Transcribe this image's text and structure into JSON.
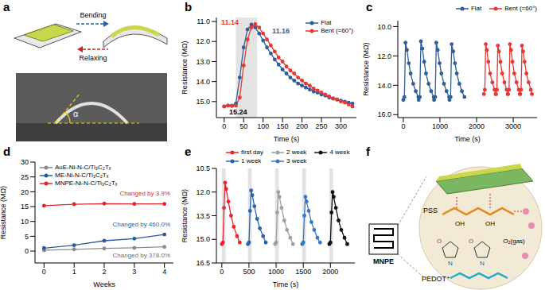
{
  "panels": {
    "a": {
      "label": "a",
      "texts": {
        "bend": "Bending",
        "relax": "Relaxing",
        "angle": "α"
      }
    },
    "f": {
      "label": "f",
      "texts": {
        "device": "MNPE",
        "pss": "PSS",
        "pedot": "PEDOT⁺",
        "gas": "O₂(gas)",
        "oh": [
          "OH",
          "OH"
        ],
        "n": [
          "N",
          "N"
        ],
        "o": [
          "O",
          "O"
        ]
      }
    }
  },
  "chart_data": [
    {
      "label": "b",
      "type": "line",
      "xlabel": "Time (s)",
      "ylabel": "Resistance (MΩ)",
      "xlim": [
        -20,
        340
      ],
      "xticks": [
        0,
        50,
        100,
        150,
        200,
        250,
        300
      ],
      "ylim": [
        15.8,
        10.8
      ],
      "yticks": [
        {
          "value": 11,
          "label": "11.0"
        },
        {
          "value": 12,
          "label": "12.0"
        },
        {
          "value": 13,
          "label": "13.0"
        },
        {
          "value": 14,
          "label": "14.0"
        },
        {
          "value": 15,
          "label": "15.0"
        }
      ],
      "legend": "upper right",
      "exposure": [
        [
          30,
          85
        ]
      ],
      "annotations": [
        "11.14",
        "11.16",
        "15.24"
      ],
      "series": [
        {
          "name": "Flat",
          "color": "#2f5f98",
          "marker": "circle",
          "line_style": "solid",
          "x": [
            0,
            10,
            20,
            30,
            40,
            50,
            60,
            70,
            80,
            90,
            100,
            110,
            120,
            130,
            140,
            150,
            160,
            170,
            180,
            190,
            200,
            210,
            220,
            230,
            240,
            250,
            260,
            270,
            280,
            290,
            300,
            310,
            320,
            330
          ],
          "values": [
            15.24,
            15.2,
            15.2,
            15.1,
            13.8,
            12.3,
            11.4,
            11.16,
            11.3,
            11.6,
            11.95,
            12.3,
            12.6,
            12.9,
            13.15,
            13.4,
            13.6,
            13.8,
            13.95,
            14.1,
            14.2,
            14.3,
            14.4,
            14.5,
            14.55,
            14.65,
            14.7,
            14.8,
            14.85,
            14.9,
            14.95,
            15.0,
            15.05,
            15.1
          ]
        },
        {
          "name": "Bent (=60°)",
          "color": "#e53935",
          "marker": "circle",
          "line_style": "solid",
          "x": [
            0,
            10,
            20,
            30,
            40,
            50,
            60,
            70,
            80,
            90,
            100,
            110,
            120,
            130,
            140,
            150,
            160,
            170,
            180,
            190,
            200,
            210,
            220,
            230,
            240,
            250,
            260,
            270,
            280,
            290,
            300,
            310,
            320,
            330
          ],
          "values": [
            15.25,
            15.2,
            15.22,
            15.2,
            14.8,
            13.2,
            11.9,
            11.3,
            11.14,
            11.3,
            11.6,
            11.9,
            12.2,
            12.5,
            12.8,
            13.0,
            13.25,
            13.45,
            13.6,
            13.8,
            13.95,
            14.1,
            14.2,
            14.35,
            14.45,
            14.55,
            14.65,
            14.75,
            14.85,
            14.9,
            15.0,
            15.05,
            15.15,
            15.25
          ]
        }
      ]
    },
    {
      "label": "c",
      "type": "line",
      "xlabel": "Time (s)",
      "ylabel": "Resistance (MΩ)",
      "xlim": [
        -150,
        3650
      ],
      "xticks": [
        0,
        1000,
        2000,
        3000
      ],
      "ylim": [
        16.2,
        9.6
      ],
      "yticks": [
        {
          "value": 10,
          "label": "10.0"
        },
        {
          "value": 12,
          "label": "12.0"
        },
        {
          "value": 14,
          "label": "14.0"
        },
        {
          "value": 16,
          "label": "16.0"
        }
      ],
      "legend": "upper right",
      "series": [
        {
          "name": "Flat",
          "color": "#2f5f98",
          "marker": "circle",
          "line_style": "solid",
          "x": [
            0,
            30,
            60,
            100,
            150,
            200,
            270,
            340,
            410,
            420,
            450,
            480,
            520,
            570,
            620,
            690,
            760,
            830,
            840,
            870,
            900,
            940,
            990,
            1040,
            1110,
            1180,
            1250,
            1260,
            1290,
            1320,
            1360,
            1410,
            1460,
            1530,
            1600,
            1670
          ],
          "values": [
            15.0,
            14.8,
            11.1,
            11.6,
            12.5,
            13.2,
            13.9,
            14.4,
            14.8,
            15.0,
            14.8,
            11.0,
            11.5,
            12.4,
            13.2,
            13.9,
            14.4,
            14.8,
            15.0,
            14.8,
            11.1,
            11.6,
            12.5,
            13.2,
            13.9,
            14.4,
            14.8,
            15.0,
            14.8,
            11.2,
            11.7,
            12.5,
            13.2,
            13.9,
            14.4,
            14.8
          ]
        },
        {
          "name": "Bent (=60°)",
          "color": "#e53935",
          "marker": "circle",
          "line_style": "solid",
          "x": [
            2200,
            2225,
            2250,
            2280,
            2320,
            2370,
            2430,
            2490,
            2520,
            2530,
            2555,
            2580,
            2610,
            2650,
            2700,
            2760,
            2820,
            2850,
            2860,
            2885,
            2910,
            2940,
            2980,
            3030,
            3090,
            3150,
            3180,
            3190,
            3215,
            3240,
            3270,
            3310,
            3360,
            3420,
            3480,
            3510
          ],
          "values": [
            14.6,
            14.3,
            11.2,
            11.6,
            12.4,
            13.2,
            13.8,
            14.3,
            14.6,
            14.6,
            14.3,
            11.3,
            11.7,
            12.4,
            13.2,
            13.8,
            14.3,
            14.6,
            14.6,
            14.3,
            11.2,
            11.6,
            12.4,
            13.2,
            13.8,
            14.3,
            14.6,
            14.6,
            14.3,
            11.3,
            11.7,
            12.4,
            13.2,
            13.8,
            14.3,
            14.6
          ]
        }
      ]
    },
    {
      "label": "d",
      "type": "line",
      "xlabel": "Weeks",
      "ylabel": "Resistance (MΩ)",
      "xlim": [
        -0.3,
        4.3
      ],
      "xticks": [
        0,
        1,
        2,
        3,
        4
      ],
      "ylim": [
        -4,
        30
      ],
      "yticks": [
        0,
        5,
        10,
        15,
        20,
        25,
        30
      ],
      "legend": "upper left",
      "annotations": [
        "Changed by 3.9%",
        "Changed by 460.0%",
        "Changed by 378.0%"
      ],
      "series": [
        {
          "name": "AuE-Ni-N-C/Ti₃C₂Tₓ",
          "color": "#8c8c8c",
          "marker": "circle",
          "line_style": "solid",
          "x": [
            0,
            1,
            2,
            3,
            4
          ],
          "values": [
            0.3,
            0.6,
            0.9,
            1.1,
            1.43
          ]
        },
        {
          "name": "ME-Ni-N-C/Ti₃C₂Tₓ",
          "color": "#2a5c9a",
          "marker": "circle",
          "line_style": "solid",
          "x": [
            0,
            1,
            2,
            3,
            4
          ],
          "values": [
            1.0,
            2.0,
            3.5,
            4.2,
            5.6
          ]
        },
        {
          "name": "MNPE-Ni-N-C/Ti₃C₂Tₓ",
          "color": "#e0262b",
          "marker": "circle",
          "line_style": "solid",
          "x": [
            0,
            1,
            2,
            3,
            4
          ],
          "values": [
            15.3,
            15.8,
            16.0,
            15.9,
            15.9
          ]
        }
      ]
    },
    {
      "label": "e",
      "type": "line",
      "xlabel": "Time (s)",
      "ylabel": "Resistance (MΩ)",
      "xlim": [
        -100,
        2450
      ],
      "xticks": [
        0,
        500,
        1000,
        1500,
        2000
      ],
      "ylim": [
        16.5,
        10.5
      ],
      "yticks": [
        10.5,
        {
          "value": 12,
          "label": "12.0"
        },
        13.5,
        {
          "value": 15,
          "label": "15.0"
        },
        16.5
      ],
      "legend": "upper center",
      "exposure": [
        [
          0,
          70
        ],
        [
          480,
          550
        ],
        [
          980,
          1050
        ],
        [
          1480,
          1550
        ],
        [
          1980,
          2050
        ]
      ],
      "series": [
        {
          "name": "first day",
          "color": "#e8262b",
          "marker": "circle",
          "line_style": "solid",
          "x": [
            0,
            20,
            40,
            60,
            80,
            120,
            170,
            220,
            280,
            330
          ],
          "values": [
            15.3,
            15.2,
            13.0,
            11.4,
            11.8,
            12.6,
            13.5,
            14.2,
            14.8,
            15.2
          ]
        },
        {
          "name": "1 week",
          "color": "#2c64b0",
          "marker": "circle",
          "line_style": "solid",
          "x": [
            480,
            500,
            520,
            540,
            560,
            600,
            650,
            700,
            760,
            810
          ],
          "values": [
            15.3,
            15.2,
            13.2,
            11.9,
            12.2,
            12.9,
            13.7,
            14.3,
            14.8,
            15.2
          ]
        },
        {
          "name": "2 week",
          "color": "#a0a0a0",
          "marker": "circle",
          "line_style": "solid",
          "x": [
            980,
            1000,
            1020,
            1040,
            1060,
            1100,
            1150,
            1200,
            1260,
            1310
          ],
          "values": [
            15.3,
            15.2,
            13.3,
            12.0,
            12.3,
            13.0,
            13.8,
            14.4,
            14.9,
            15.3
          ]
        },
        {
          "name": "3 week",
          "color": "#3a78bd",
          "marker": "circle",
          "line_style": "solid",
          "x": [
            1480,
            1500,
            1520,
            1540,
            1560,
            1600,
            1650,
            1700,
            1760,
            1810
          ],
          "values": [
            15.3,
            15.2,
            13.5,
            12.3,
            12.6,
            13.2,
            13.9,
            14.4,
            14.9,
            15.2
          ]
        },
        {
          "name": "4 week",
          "color": "#111111",
          "marker": "circle",
          "line_style": "solid",
          "x": [
            1980,
            2000,
            2020,
            2040,
            2060,
            2100,
            2150,
            2200,
            2260,
            2310
          ],
          "values": [
            15.3,
            15.2,
            13.3,
            12.0,
            12.3,
            13.0,
            13.8,
            14.4,
            14.9,
            15.3
          ]
        }
      ]
    }
  ]
}
